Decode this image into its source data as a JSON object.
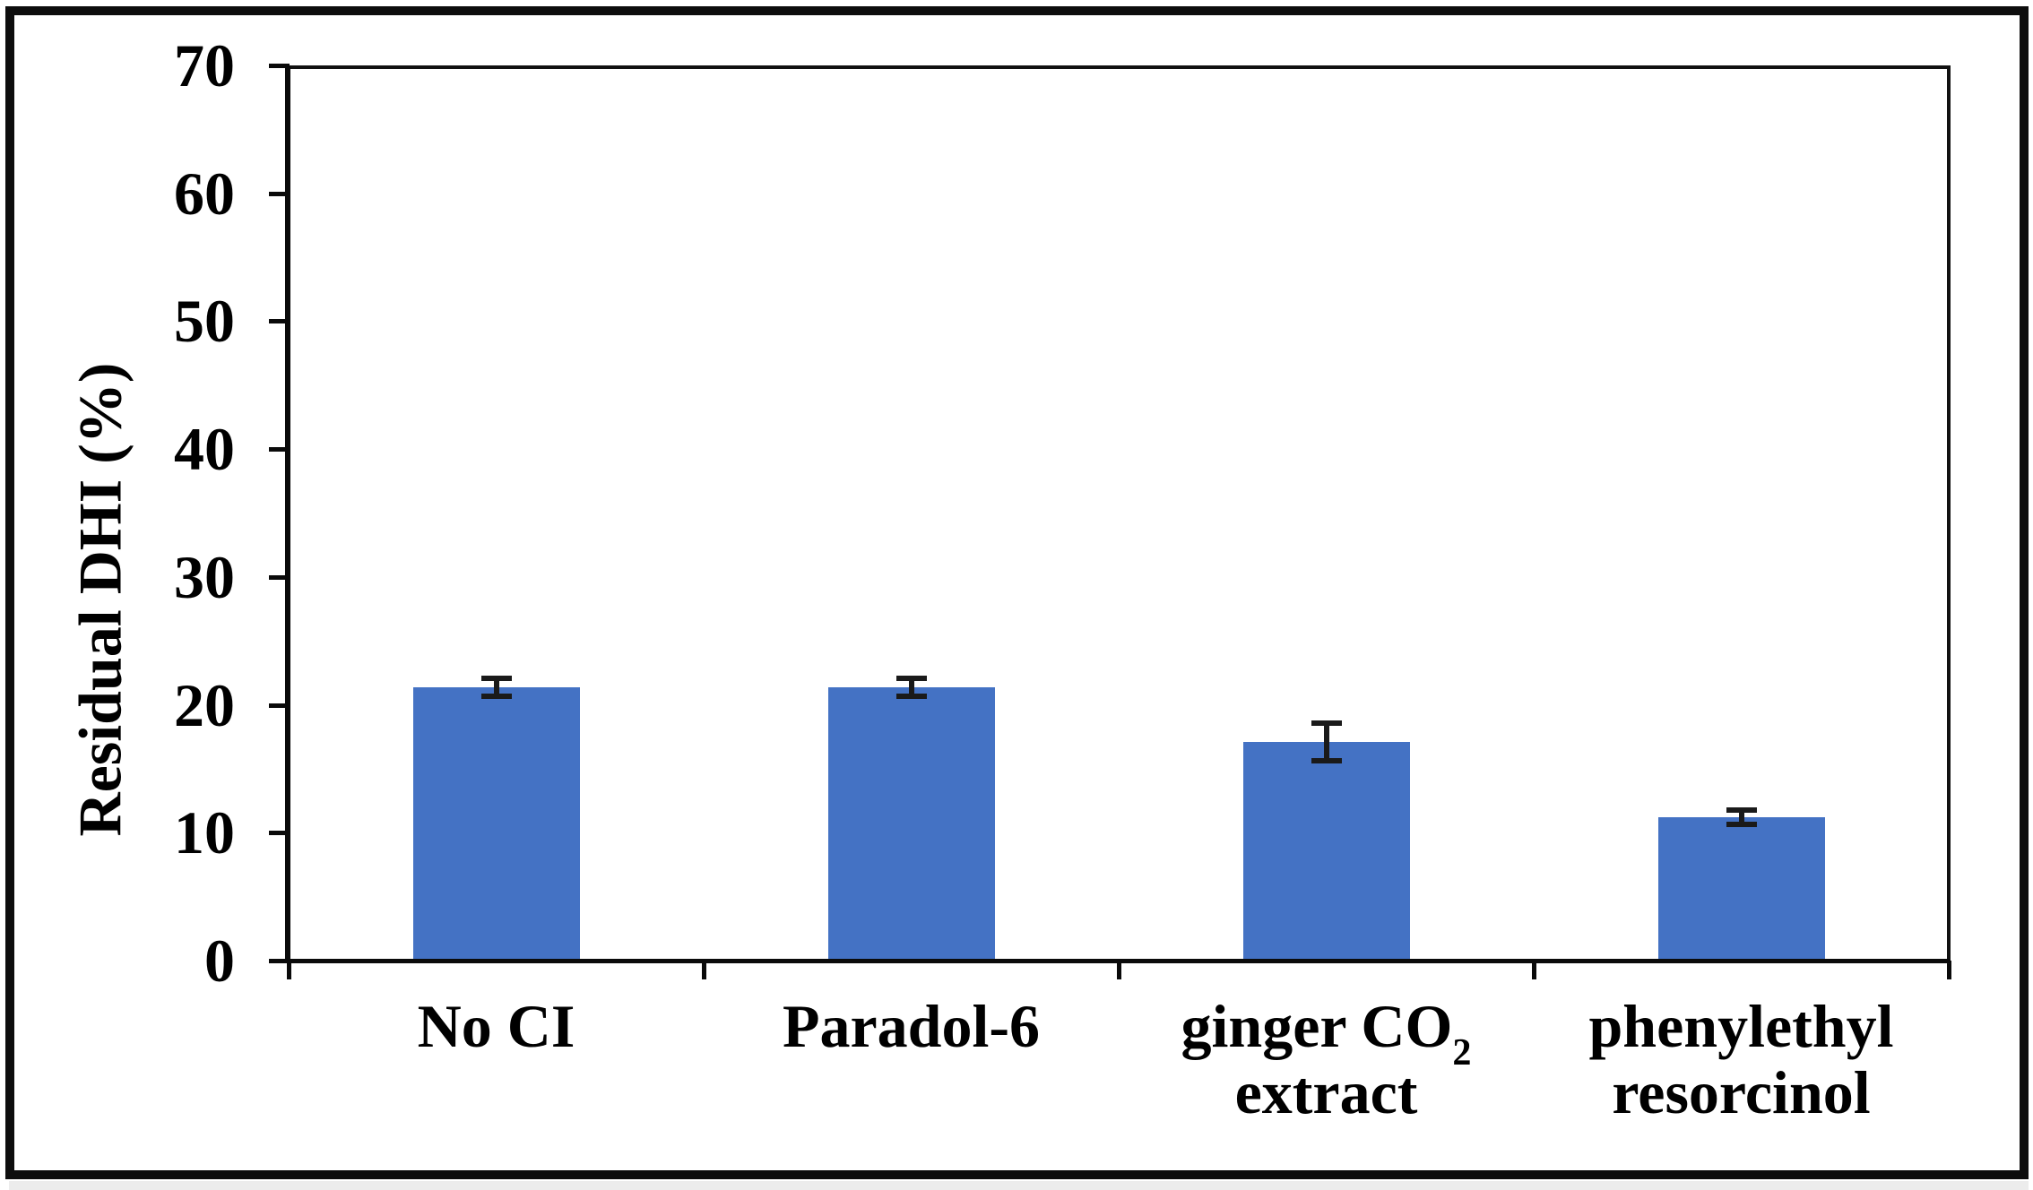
{
  "figure": {
    "background": "#ffffff",
    "border_color": "#0d0d0d",
    "text_color": "#000000"
  },
  "chart_data": {
    "type": "bar",
    "title": "",
    "xlabel": "",
    "ylabel": "Residual DHI (%)",
    "ylim": [
      0,
      70
    ],
    "ytick_interval": 10,
    "yticks": [
      0,
      10,
      20,
      30,
      40,
      50,
      60,
      70
    ],
    "categories": [
      {
        "lines": [
          "No CI"
        ]
      },
      {
        "lines": [
          "Paradol-6"
        ]
      },
      {
        "lines": [
          "ginger CO~2~",
          "extract"
        ]
      },
      {
        "lines": [
          "phenylethyl",
          "resorcinol"
        ]
      }
    ],
    "series": [
      {
        "name": "Residual DHI",
        "values": [
          21.4,
          21.4,
          17.1,
          11.2
        ],
        "errors": [
          0.7,
          0.7,
          1.5,
          0.55
        ]
      }
    ],
    "bar_color": "#4472C4",
    "error_bar_color": "#1a1a1a",
    "axis_color": "#0a0a0a",
    "grid": false,
    "legend_position": "none"
  }
}
